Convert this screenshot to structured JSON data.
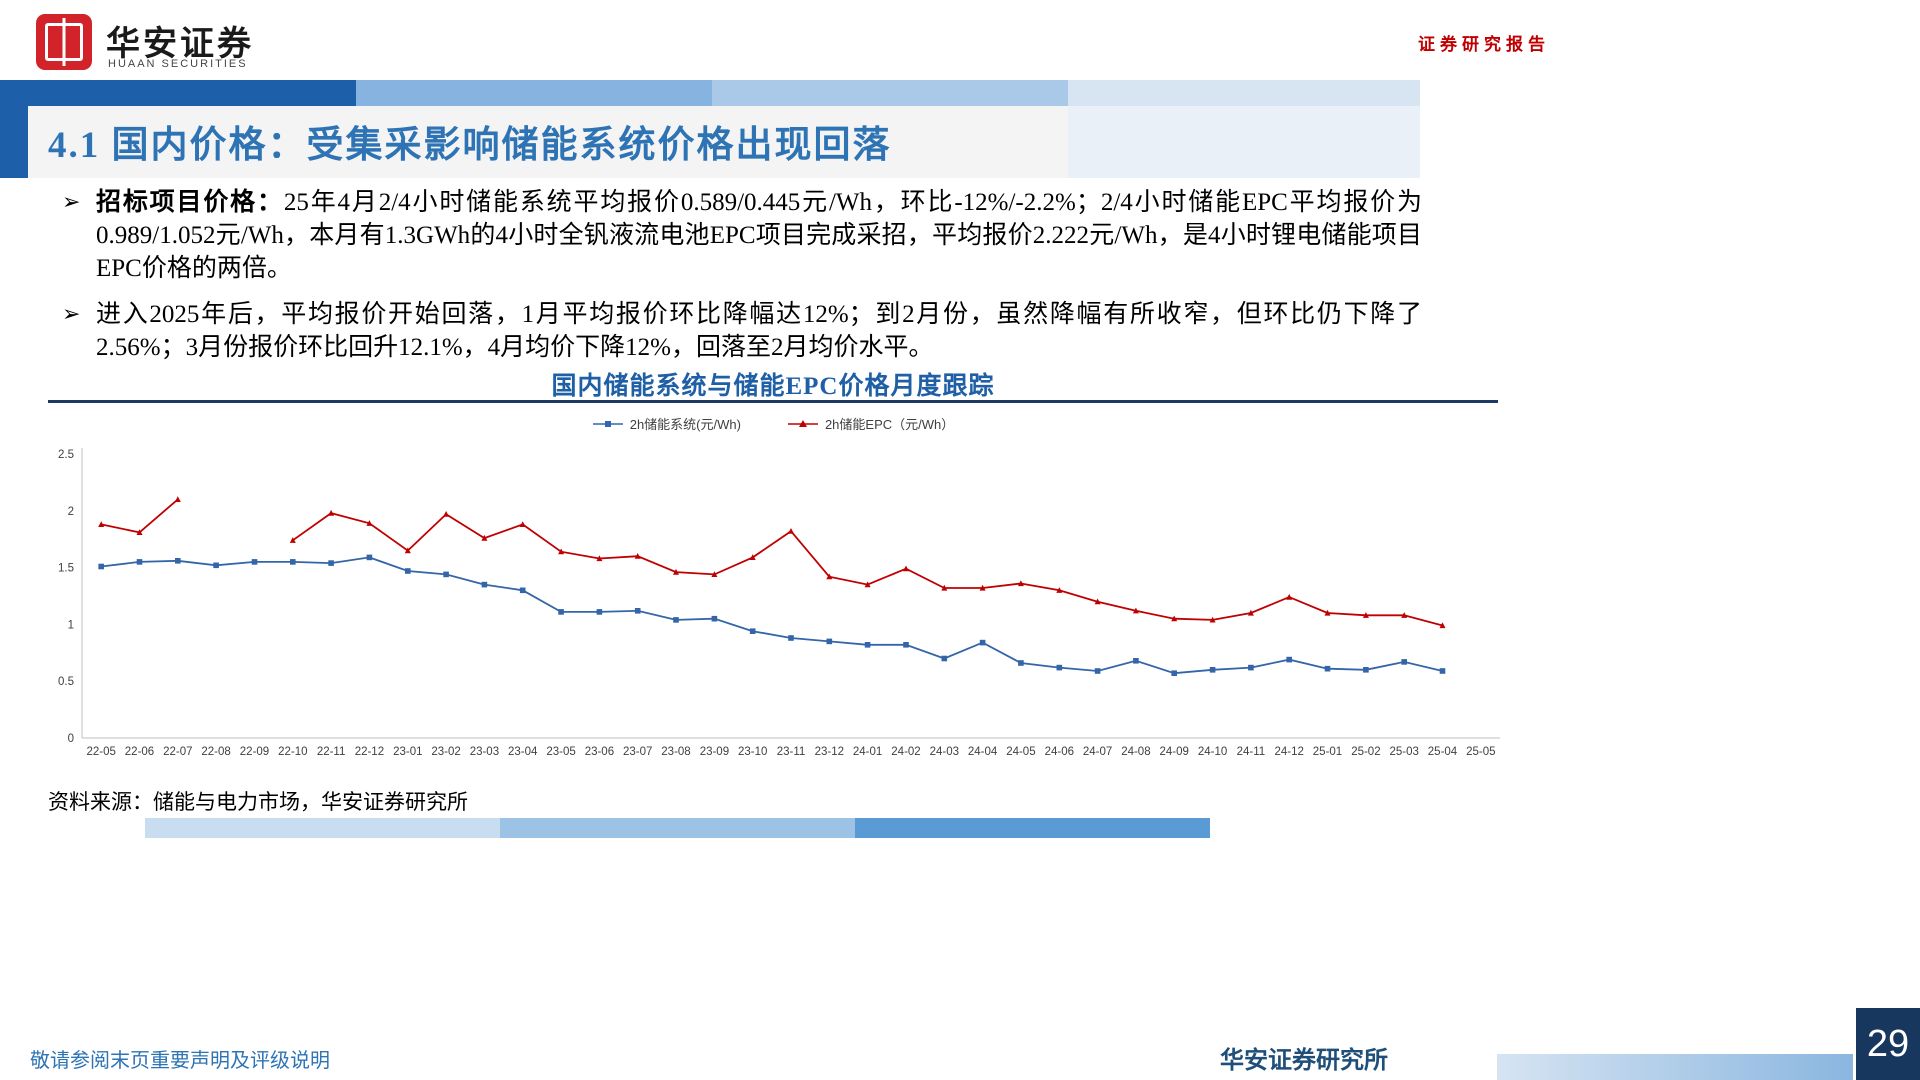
{
  "header": {
    "brand_cn": "华安证券",
    "brand_en": "HUAAN SECURITIES",
    "report_type": "证券研究报告"
  },
  "title": "4.1 国内价格：受集采影响储能系统价格出现回落",
  "glyphs": {
    "bullet": "➢"
  },
  "bullets": [
    {
      "lead": "招标项目价格：",
      "text": "25年4月2/4小时储能系统平均报价0.589/0.445元/Wh，环比-12%/-2.2%；2/4小时储能EPC平均报价为0.989/1.052元/Wh，本月有1.3GWh的4小时全钒液流电池EPC项目完成采招，平均报价2.222元/Wh，是4小时锂电储能项目EPC价格的两倍。"
    },
    {
      "lead": "",
      "text": "进入2025年后，平均报价开始回落，1月平均报价环比降幅达12%；到2月份，虽然降幅有所收窄，但环比仍下降了2.56%；3月份报价环比回升12.1%，4月均价下降12%，回落至2月均价水平。"
    }
  ],
  "chart_data": {
    "type": "line",
    "title": "国内储能系统与储能EPC价格月度跟踪",
    "xlabel": "",
    "ylabel": "元/Wh",
    "ylim": [
      0,
      2.5
    ],
    "yticks": [
      "0",
      "0.5",
      "1",
      "1.5",
      "2",
      "2.5"
    ],
    "grid": false,
    "legend_position": "top",
    "categories": [
      "22-05",
      "22-06",
      "22-07",
      "22-08",
      "22-09",
      "22-10",
      "22-11",
      "22-12",
      "23-01",
      "23-02",
      "23-03",
      "23-04",
      "23-05",
      "23-06",
      "23-07",
      "23-08",
      "23-09",
      "23-10",
      "23-11",
      "23-12",
      "24-01",
      "24-02",
      "24-03",
      "24-04",
      "24-05",
      "24-06",
      "24-07",
      "24-08",
      "24-09",
      "24-10",
      "24-11",
      "24-12",
      "25-01",
      "25-02",
      "25-03",
      "25-04",
      "25-05"
    ],
    "series": [
      {
        "name": "2h储能系统(元/Wh)",
        "color": "#3465a8",
        "marker": "square",
        "values": [
          1.51,
          1.55,
          1.56,
          1.52,
          1.55,
          1.55,
          1.54,
          1.59,
          1.47,
          1.44,
          1.35,
          1.3,
          1.11,
          1.11,
          1.12,
          1.04,
          1.05,
          0.94,
          0.88,
          0.85,
          0.82,
          0.82,
          0.7,
          0.84,
          0.66,
          0.62,
          0.59,
          0.68,
          0.57,
          0.6,
          0.62,
          0.69,
          0.61,
          0.6,
          0.67,
          0.59,
          null
        ]
      },
      {
        "name": "2h储能EPC（元/Wh）",
        "color": "#c00000",
        "marker": "triangle",
        "values": [
          1.88,
          1.81,
          2.1,
          null,
          null,
          1.74,
          1.98,
          1.89,
          1.65,
          1.97,
          1.76,
          1.88,
          1.64,
          1.58,
          1.6,
          1.46,
          1.44,
          1.59,
          1.82,
          1.42,
          1.35,
          1.49,
          1.32,
          1.32,
          1.36,
          1.3,
          1.2,
          1.12,
          1.05,
          1.04,
          1.1,
          1.24,
          1.1,
          1.08,
          1.08,
          0.99,
          null
        ]
      }
    ]
  },
  "source_note": "资料来源：储能与电力市场，华安证券研究所",
  "footer": {
    "disclaimer": "敬请参阅末页重要声明及评级说明",
    "institute": "华安证券研究所",
    "page_number": "29"
  }
}
